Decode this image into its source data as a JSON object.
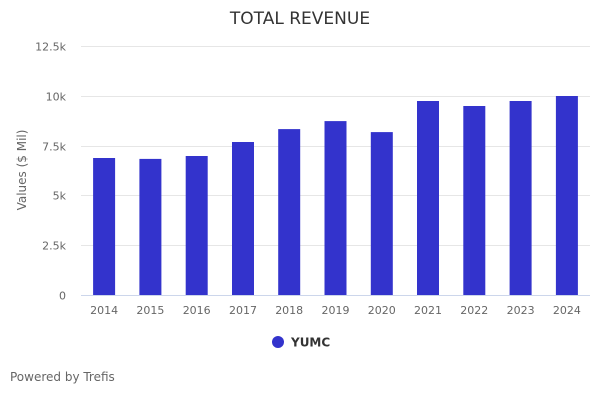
{
  "chart_data": {
    "type": "bar",
    "title": "TOTAL REVENUE",
    "xlabel": "",
    "ylabel": "Values ($ Mil)",
    "categories": [
      "2014",
      "2015",
      "2016",
      "2017",
      "2018",
      "2019",
      "2020",
      "2021",
      "2022",
      "2023",
      "2024"
    ],
    "series": [
      {
        "name": "YUMC",
        "color": "#3333cc",
        "values": [
          6880,
          6830,
          6980,
          7680,
          8330,
          8730,
          8180,
          9740,
          9490,
          9740,
          9990
        ]
      }
    ],
    "ylim": [
      0,
      12500
    ],
    "yticks": [
      0,
      2500,
      5000,
      7500,
      10000,
      12500
    ],
    "ytick_labels": [
      "0",
      "2.5k",
      "5k",
      "7.5k",
      "10k",
      "12.5k"
    ],
    "grid": true,
    "legend_position": "bottom-center"
  },
  "footer": {
    "credit": "Powered by Trefis"
  }
}
